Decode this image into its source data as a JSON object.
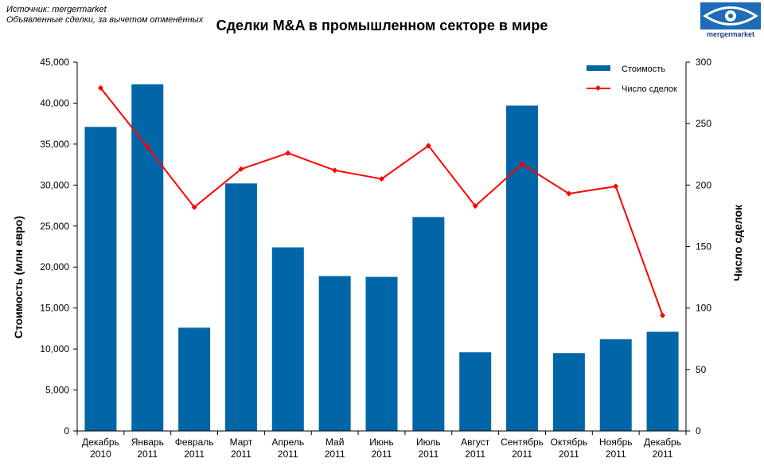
{
  "header": {
    "source_line1": "Источник: mergermarket",
    "source_line2": "Объявленные сделки, за вычетом отменённых",
    "logo_text": "mergermarket"
  },
  "colors": {
    "bar": "#0066a8",
    "line": "#ff0000",
    "logo": "#1f6bb5"
  },
  "chart_data": {
    "type": "bar",
    "title": "Сделки M&A в промышленном секторе в мире",
    "categories": [
      [
        "Декабрь",
        "2010"
      ],
      [
        "Январь",
        "2011"
      ],
      [
        "Февраль",
        "2011"
      ],
      [
        "Март",
        "2011"
      ],
      [
        "Апрель",
        "2011"
      ],
      [
        "Май",
        "2011"
      ],
      [
        "Июнь",
        "2011"
      ],
      [
        "Июль",
        "2011"
      ],
      [
        "Август",
        "2011"
      ],
      [
        "Сентябрь",
        "2011"
      ],
      [
        "Октябрь",
        "2011"
      ],
      [
        "Ноябрь",
        "2011"
      ],
      [
        "Декабрь",
        "2011"
      ]
    ],
    "ylabel": "Стоимость  (млн евро)",
    "y2label": "Число сделок",
    "ylim": [
      0,
      45000
    ],
    "y2lim": [
      0,
      300
    ],
    "yticks": [
      "0",
      "5,000",
      "10,000",
      "15,000",
      "20,000",
      "25,000",
      "30,000",
      "35,000",
      "40,000",
      "45,000"
    ],
    "y2ticks": [
      "0",
      "50",
      "100",
      "150",
      "200",
      "250",
      "300"
    ],
    "legend_position": "top-right",
    "series": [
      {
        "name": "Стоимость",
        "type": "bar",
        "axis": "left",
        "values": [
          37100,
          42300,
          12600,
          30200,
          22400,
          18900,
          18800,
          26100,
          9600,
          39700,
          9500,
          11200,
          12100
        ]
      },
      {
        "name": "Число сделок",
        "type": "line",
        "axis": "right",
        "values": [
          279,
          231,
          182,
          213,
          226,
          212,
          205,
          232,
          183,
          217,
          193,
          199,
          94
        ]
      }
    ]
  }
}
